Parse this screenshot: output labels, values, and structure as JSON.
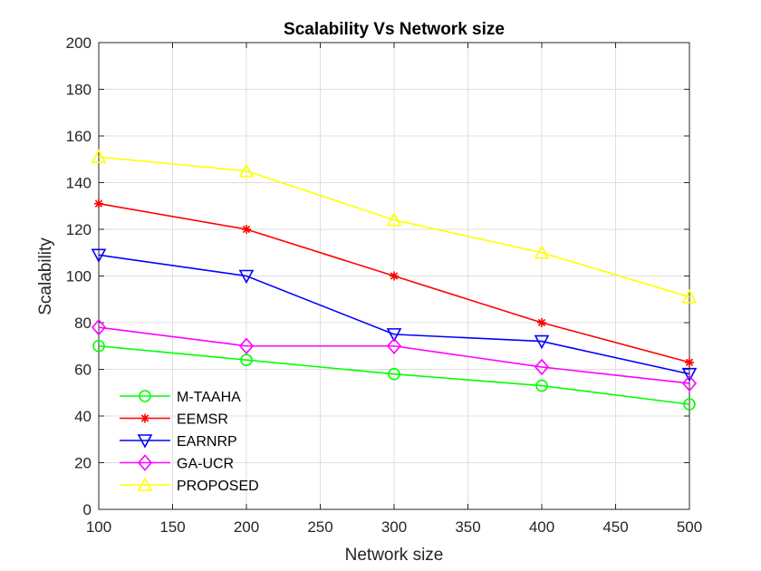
{
  "chart_data": {
    "type": "line",
    "title": "Scalability Vs Network size",
    "xlabel": "Network size",
    "ylabel": "Scalability",
    "xlim": [
      100,
      500
    ],
    "ylim": [
      0,
      200
    ],
    "xticks": [
      "100",
      "150",
      "200",
      "250",
      "300",
      "350",
      "400",
      "450",
      "500"
    ],
    "yticks": [
      "0",
      "20",
      "40",
      "60",
      "80",
      "100",
      "120",
      "140",
      "160",
      "180",
      "200"
    ],
    "grid": true,
    "legend_position": "bottom-left",
    "x": [
      100,
      200,
      300,
      400,
      500
    ],
    "series": [
      {
        "name": "M-TAAHA",
        "values": [
          70,
          64,
          58,
          53,
          45
        ],
        "color": "#00ff00",
        "marker": "circle"
      },
      {
        "name": "EEMSR",
        "values": [
          131,
          120,
          100,
          80,
          63
        ],
        "color": "#ff0000",
        "marker": "asterisk"
      },
      {
        "name": "EARNRP",
        "values": [
          109,
          100,
          75,
          72,
          58
        ],
        "color": "#0000ff",
        "marker": "triangle-down"
      },
      {
        "name": "GA-UCR",
        "values": [
          78,
          70,
          70,
          61,
          54
        ],
        "color": "#ff00ff",
        "marker": "diamond"
      },
      {
        "name": "PROPOSED",
        "values": [
          151,
          145,
          124,
          110,
          91
        ],
        "color": "#ffff00",
        "marker": "triangle-up"
      }
    ]
  }
}
